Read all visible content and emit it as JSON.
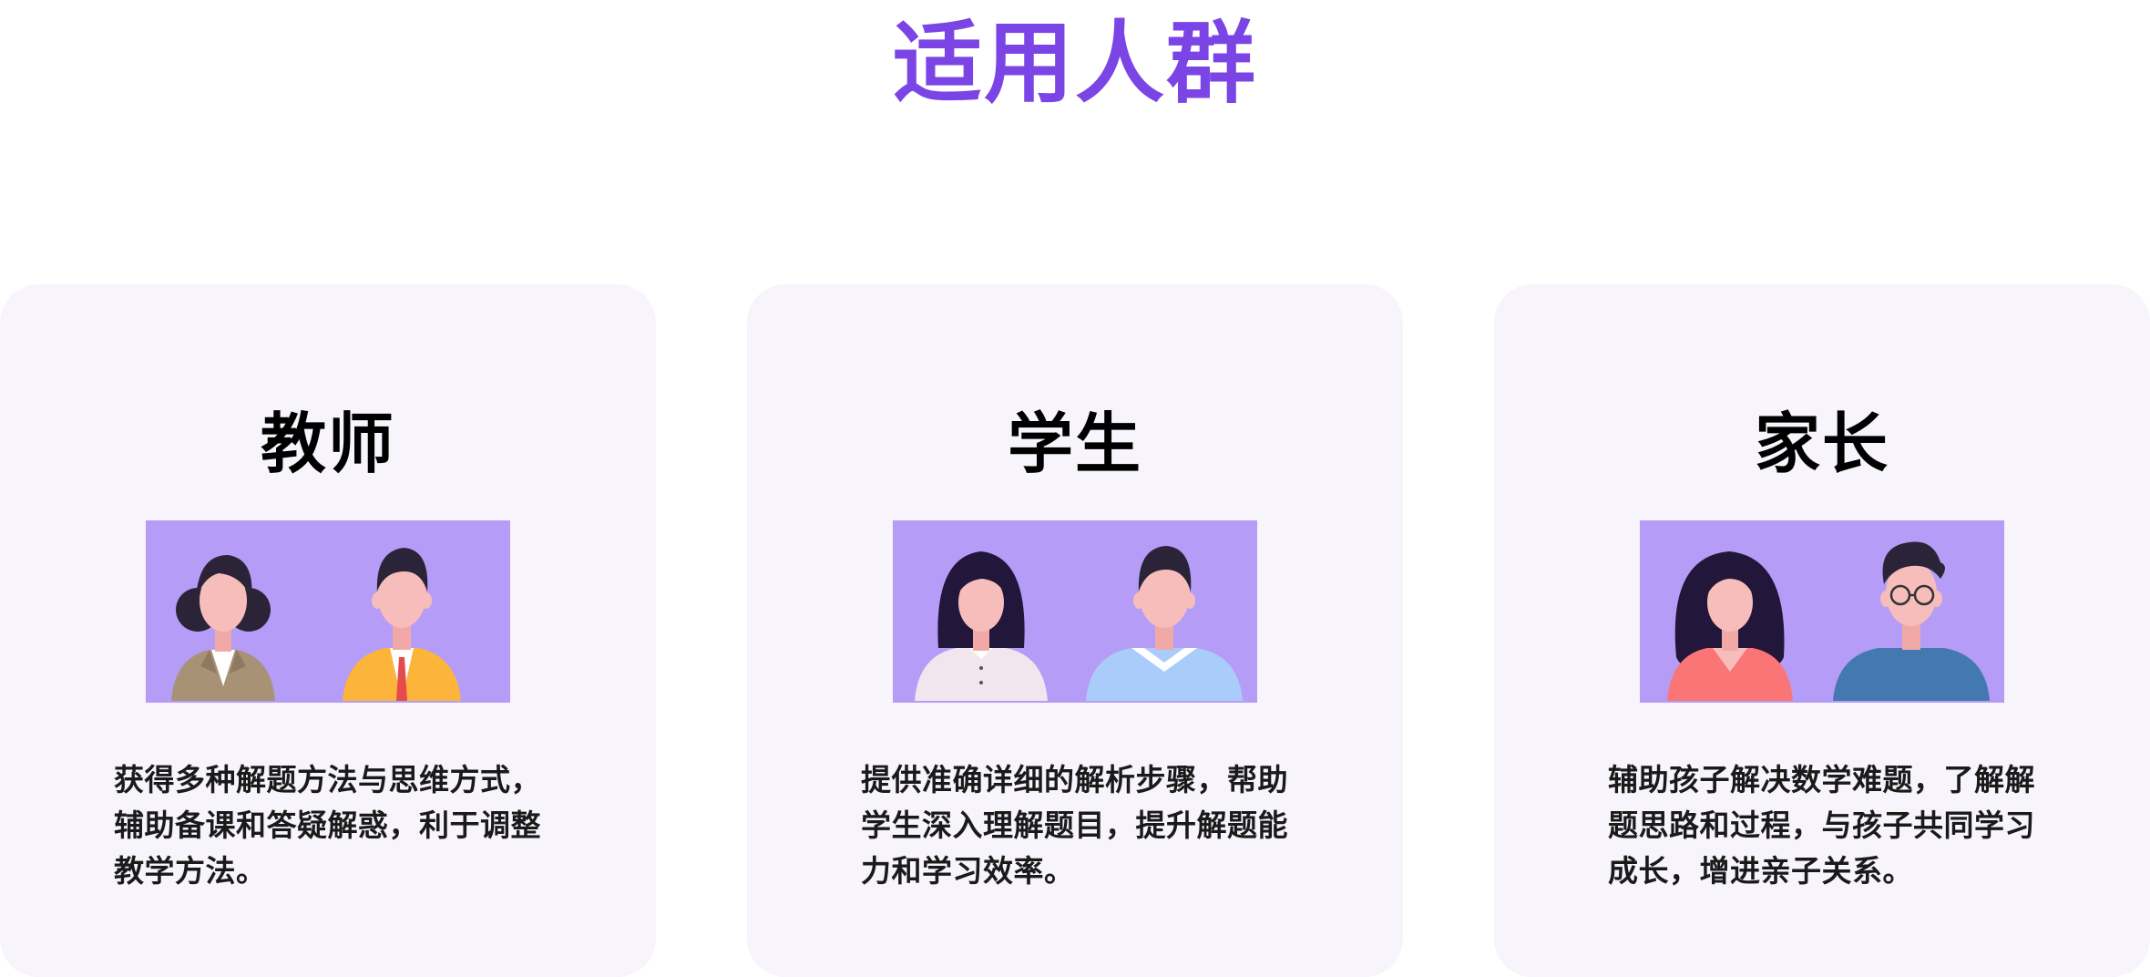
{
  "title": "适用人群",
  "cards": [
    {
      "title": "教师",
      "description": "获得多种解题方法与思维方式，辅助备课和答疑解惑，利于调整教学方法。",
      "illustration_icon": "teachers-avatar-icon"
    },
    {
      "title": "学生",
      "description": "提供准确详细的解析步骤，帮助学生深入理解题目，提升解题能力和学习效率。",
      "illustration_icon": "students-avatar-icon"
    },
    {
      "title": "家长",
      "description": "辅助孩子解决数学难题，了解解题思路和过程，与孩子共同学习成长，增进亲子关系。",
      "illustration_icon": "parents-avatar-icon"
    }
  ],
  "colors": {
    "title": "#7B45E6",
    "card_background": "#F7F4FC",
    "illustration_background": "#B59CF6"
  }
}
